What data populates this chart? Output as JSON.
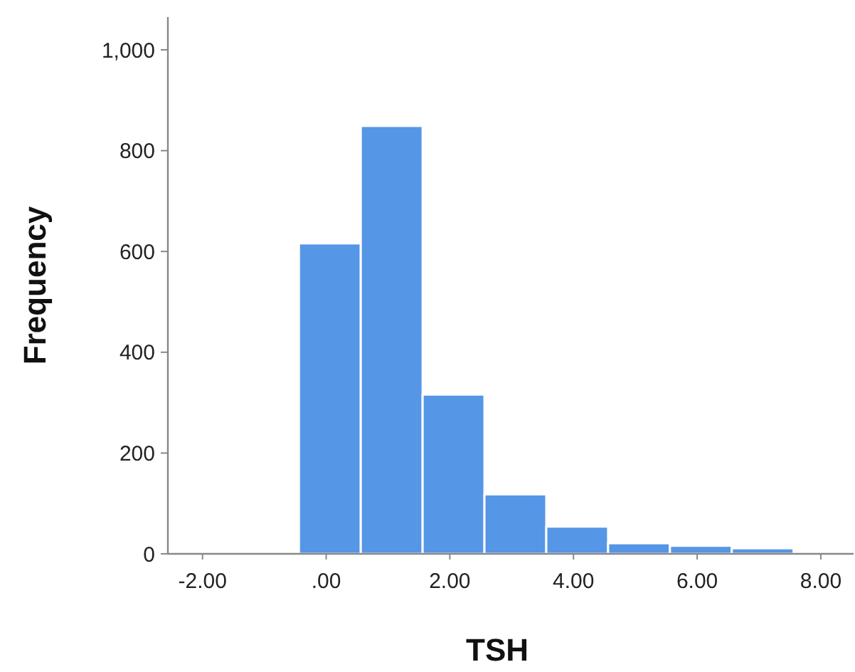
{
  "chart_data": {
    "type": "histogram",
    "xlabel": "TSH",
    "ylabel": "Frequency",
    "bins": [
      -0.44,
      0.56,
      1.56,
      2.56,
      3.56,
      4.56,
      5.56,
      6.56,
      7.56
    ],
    "values": [
      616,
      849,
      316,
      118,
      54,
      21,
      16,
      11
    ],
    "color": "#5596e6",
    "xlim": [
      -2.56,
      8.53
    ],
    "xticks": [
      {
        "value": -2,
        "label": "-2.00"
      },
      {
        "value": 0,
        "label": ".00"
      },
      {
        "value": 2,
        "label": "2.00"
      },
      {
        "value": 4,
        "label": "4.00"
      },
      {
        "value": 6,
        "label": "6.00"
      },
      {
        "value": 8,
        "label": "8.00"
      }
    ],
    "ylim": [
      0,
      1065
    ],
    "yticks": [
      0,
      200,
      400,
      600,
      800,
      {
        "value": 1000,
        "label": "1,000"
      }
    ],
    "grid": false
  }
}
